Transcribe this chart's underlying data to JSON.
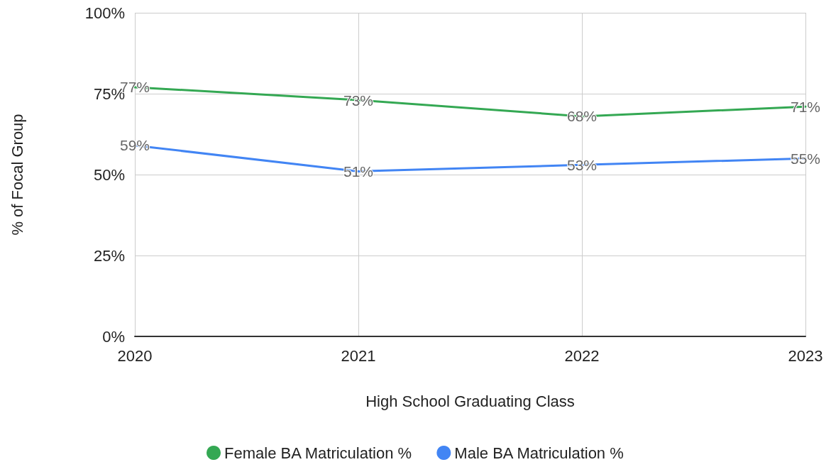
{
  "chart_data": {
    "type": "line",
    "xlabel": "High School Graduating Class",
    "ylabel": "% of Focal Group",
    "categories": [
      "2020",
      "2021",
      "2022",
      "2023"
    ],
    "series": [
      {
        "name": "Female BA Matriculation %",
        "color": "#34a853",
        "values": [
          77,
          73,
          68,
          71
        ],
        "value_labels": [
          "77%",
          "73%",
          "68%",
          "71%"
        ]
      },
      {
        "name": "Male BA Matriculation %",
        "color": "#4285f4",
        "values": [
          59,
          51,
          53,
          55
        ],
        "value_labels": [
          "59%",
          "51%",
          "53%",
          "55%"
        ]
      }
    ],
    "ylim": [
      0,
      100
    ],
    "yticks": [
      {
        "value": 0,
        "label": "0%"
      },
      {
        "value": 25,
        "label": "25%"
      },
      {
        "value": 50,
        "label": "50%"
      },
      {
        "value": 75,
        "label": "75%"
      },
      {
        "value": 100,
        "label": "100%"
      }
    ],
    "grid": true,
    "legend": "bottom",
    "marker": "none",
    "line_style": "solid"
  }
}
